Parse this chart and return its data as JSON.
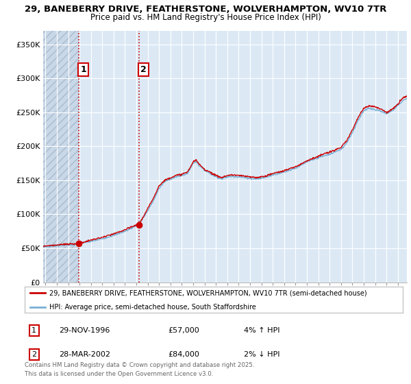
{
  "title_line1": "29, BANEBERRY DRIVE, FEATHERSTONE, WOLVERHAMPTON, WV10 7TR",
  "title_line2": "Price paid vs. HM Land Registry's House Price Index (HPI)",
  "background_color": "#ffffff",
  "plot_bg_color": "#dce9f5",
  "hatch_bg_color": "#c8d8e8",
  "grid_color": "#ffffff",
  "red_line_color": "#cc0000",
  "blue_line_color": "#7aafd4",
  "sale1_date": 1996.91,
  "sale1_price": 57000,
  "sale1_label": "1",
  "sale2_date": 2002.23,
  "sale2_price": 84000,
  "sale2_label": "2",
  "xmin": 1993.8,
  "xmax": 2025.8,
  "ymin": 0,
  "ymax": 370000,
  "yticks": [
    0,
    50000,
    100000,
    150000,
    200000,
    250000,
    300000,
    350000
  ],
  "ytick_labels": [
    "£0",
    "£50K",
    "£100K",
    "£150K",
    "£200K",
    "£250K",
    "£300K",
    "£350K"
  ],
  "legend_red_label": "29, BANEBERRY DRIVE, FEATHERSTONE, WOLVERHAMPTON, WV10 7TR (semi-detached house)",
  "legend_blue_label": "HPI: Average price, semi-detached house, South Staffordshire",
  "footer_text": "Contains HM Land Registry data © Crown copyright and database right 2025.\nThis data is licensed under the Open Government Licence v3.0.",
  "table_rows": [
    {
      "num": "1",
      "date": "29-NOV-1996",
      "price": "£57,000",
      "hpi": "4% ↑ HPI"
    },
    {
      "num": "2",
      "date": "28-MAR-2002",
      "price": "£84,000",
      "hpi": "2% ↓ HPI"
    }
  ],
  "hpi_pts": [
    [
      1993.8,
      52000
    ],
    [
      1994,
      52500
    ],
    [
      1994.5,
      53000
    ],
    [
      1995,
      54000
    ],
    [
      1995.5,
      54500
    ],
    [
      1996,
      55000
    ],
    [
      1996.5,
      55500
    ],
    [
      1997,
      57000
    ],
    [
      1997.5,
      58500
    ],
    [
      1998,
      60000
    ],
    [
      1998.5,
      62000
    ],
    [
      1999,
      64000
    ],
    [
      1999.5,
      66500
    ],
    [
      2000,
      69000
    ],
    [
      2000.5,
      72000
    ],
    [
      2001,
      75000
    ],
    [
      2001.5,
      79000
    ],
    [
      2002,
      84000
    ],
    [
      2002.5,
      92000
    ],
    [
      2003,
      105000
    ],
    [
      2003.5,
      120000
    ],
    [
      2004,
      138000
    ],
    [
      2004.5,
      148000
    ],
    [
      2005,
      152000
    ],
    [
      2005.5,
      155000
    ],
    [
      2006,
      157000
    ],
    [
      2006.5,
      160000
    ],
    [
      2007,
      175000
    ],
    [
      2007.25,
      178000
    ],
    [
      2007.5,
      172000
    ],
    [
      2008,
      165000
    ],
    [
      2008.5,
      160000
    ],
    [
      2009,
      155000
    ],
    [
      2009.5,
      152000
    ],
    [
      2010,
      155000
    ],
    [
      2010.5,
      156000
    ],
    [
      2011,
      155000
    ],
    [
      2011.5,
      154000
    ],
    [
      2012,
      153000
    ],
    [
      2012.5,
      152000
    ],
    [
      2013,
      153000
    ],
    [
      2013.5,
      155000
    ],
    [
      2014,
      158000
    ],
    [
      2014.5,
      160000
    ],
    [
      2015,
      162000
    ],
    [
      2015.5,
      165000
    ],
    [
      2016,
      168000
    ],
    [
      2016.5,
      172000
    ],
    [
      2017,
      177000
    ],
    [
      2017.5,
      180000
    ],
    [
      2018,
      183000
    ],
    [
      2018.5,
      186000
    ],
    [
      2019,
      188000
    ],
    [
      2019.5,
      192000
    ],
    [
      2020,
      195000
    ],
    [
      2020.5,
      205000
    ],
    [
      2021,
      220000
    ],
    [
      2021.5,
      238000
    ],
    [
      2022,
      252000
    ],
    [
      2022.5,
      256000
    ],
    [
      2023,
      254000
    ],
    [
      2023.5,
      252000
    ],
    [
      2024,
      248000
    ],
    [
      2024.5,
      252000
    ],
    [
      2025,
      260000
    ],
    [
      2025.5,
      268000
    ],
    [
      2025.8,
      270000
    ]
  ],
  "red_pts": [
    [
      1993.8,
      53000
    ],
    [
      1994,
      53500
    ],
    [
      1994.5,
      54000
    ],
    [
      1995,
      55000
    ],
    [
      1995.5,
      55500
    ],
    [
      1996,
      56000
    ],
    [
      1996.5,
      56500
    ],
    [
      1997,
      57500
    ],
    [
      1997.5,
      59500
    ],
    [
      1998,
      62000
    ],
    [
      1998.5,
      64000
    ],
    [
      1999,
      66000
    ],
    [
      1999.5,
      68500
    ],
    [
      2000,
      71000
    ],
    [
      2000.5,
      74000
    ],
    [
      2001,
      77000
    ],
    [
      2001.5,
      81000
    ],
    [
      2002,
      84000
    ],
    [
      2002.23,
      84000
    ],
    [
      2002.5,
      93000
    ],
    [
      2003,
      108000
    ],
    [
      2003.5,
      124000
    ],
    [
      2004,
      142000
    ],
    [
      2004.5,
      150000
    ],
    [
      2005,
      154000
    ],
    [
      2005.5,
      157000
    ],
    [
      2006,
      159000
    ],
    [
      2006.5,
      162000
    ],
    [
      2007,
      177000
    ],
    [
      2007.25,
      180000
    ],
    [
      2007.5,
      174000
    ],
    [
      2008,
      166000
    ],
    [
      2008.5,
      162000
    ],
    [
      2009,
      157000
    ],
    [
      2009.5,
      154000
    ],
    [
      2010,
      157000
    ],
    [
      2010.5,
      158000
    ],
    [
      2011,
      157000
    ],
    [
      2011.5,
      156000
    ],
    [
      2012,
      155000
    ],
    [
      2012.5,
      154000
    ],
    [
      2013,
      155000
    ],
    [
      2013.5,
      157000
    ],
    [
      2014,
      160000
    ],
    [
      2014.5,
      162000
    ],
    [
      2015,
      164000
    ],
    [
      2015.5,
      167000
    ],
    [
      2016,
      170000
    ],
    [
      2016.5,
      174000
    ],
    [
      2017,
      179000
    ],
    [
      2017.5,
      182000
    ],
    [
      2018,
      185000
    ],
    [
      2018.5,
      189000
    ],
    [
      2019,
      191000
    ],
    [
      2019.5,
      195000
    ],
    [
      2020,
      198000
    ],
    [
      2020.5,
      208000
    ],
    [
      2021,
      224000
    ],
    [
      2021.5,
      242000
    ],
    [
      2022,
      256000
    ],
    [
      2022.5,
      260000
    ],
    [
      2023,
      258000
    ],
    [
      2023.5,
      255000
    ],
    [
      2024,
      250000
    ],
    [
      2024.5,
      254000
    ],
    [
      2025,
      262000
    ],
    [
      2025.5,
      272000
    ],
    [
      2025.8,
      274000
    ]
  ]
}
